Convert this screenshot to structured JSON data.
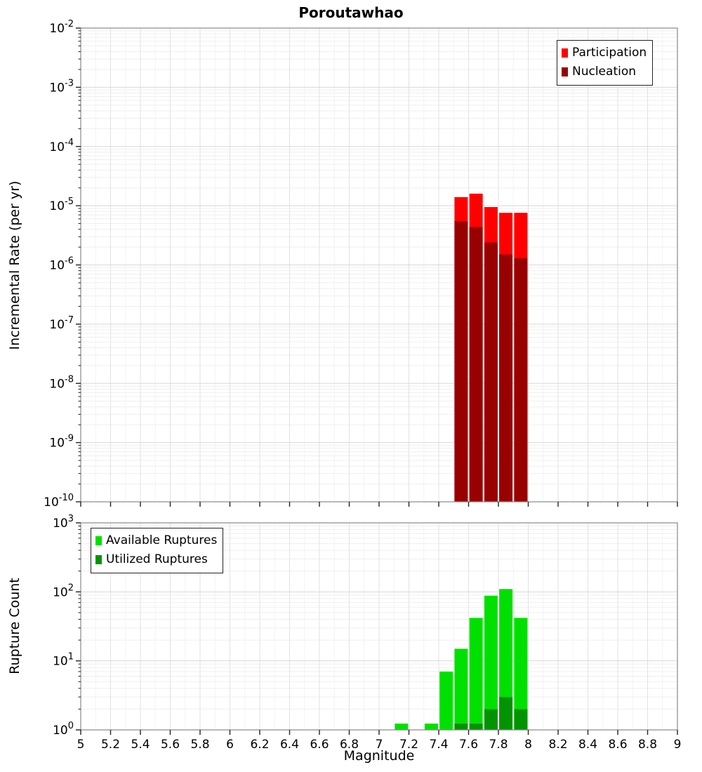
{
  "title": "Poroutawhao",
  "chart_data": [
    {
      "type": "bar",
      "title": "Poroutawhao",
      "xlabel": "",
      "ylabel": "Incremental Rate (per yr)",
      "xlim": [
        5,
        9
      ],
      "yscale": "log",
      "ylim": [
        1e-10,
        0.01
      ],
      "ytick_exponents": [
        -2,
        -3,
        -4,
        -5,
        -6,
        -7,
        -8,
        -9,
        -10
      ],
      "xticks": [
        5,
        5.2,
        5.4,
        5.6,
        5.8,
        6,
        6.2,
        6.4,
        6.6,
        6.8,
        7,
        7.2,
        7.4,
        7.6,
        7.8,
        8,
        8.2,
        8.4,
        8.6,
        8.8,
        9
      ],
      "bin_width": 0.1,
      "grid": true,
      "legend_position": "top-right",
      "series": [
        {
          "name": "Participation",
          "color": "#ff0000",
          "x": [
            7.55,
            7.65,
            7.75,
            7.85,
            7.95
          ],
          "values": [
            1.4e-05,
            1.6e-05,
            9.5e-06,
            7.6e-06,
            7.6e-06
          ]
        },
        {
          "name": "Nucleation",
          "color": "#990000",
          "x": [
            7.55,
            7.65,
            7.75,
            7.85,
            7.95
          ],
          "values": [
            5.5e-06,
            4.4e-06,
            2.4e-06,
            1.5e-06,
            1.3e-06
          ]
        }
      ]
    },
    {
      "type": "bar",
      "title": "",
      "xlabel": "Magnitude",
      "ylabel": "Rupture Count",
      "xlim": [
        5,
        9
      ],
      "yscale": "log",
      "ylim": [
        1,
        1000
      ],
      "ytick_exponents": [
        0,
        1,
        2,
        3
      ],
      "xticks": [
        5,
        5.2,
        5.4,
        5.6,
        5.8,
        6,
        6.2,
        6.4,
        6.6,
        6.8,
        7,
        7.2,
        7.4,
        7.6,
        7.8,
        8,
        8.2,
        8.4,
        8.6,
        8.8,
        9
      ],
      "bin_width": 0.1,
      "grid": true,
      "legend_position": "top-left",
      "series": [
        {
          "name": "Available Ruptures",
          "color": "#00e000",
          "x": [
            7.15,
            7.35,
            7.45,
            7.55,
            7.65,
            7.75,
            7.85,
            7.95
          ],
          "values": [
            1,
            1,
            7,
            15,
            42,
            88,
            110,
            42
          ]
        },
        {
          "name": "Utilized Ruptures",
          "color": "#009400",
          "x": [
            7.55,
            7.65,
            7.75,
            7.85,
            7.95
          ],
          "values": [
            1,
            1,
            2,
            3,
            2
          ]
        }
      ]
    }
  ]
}
